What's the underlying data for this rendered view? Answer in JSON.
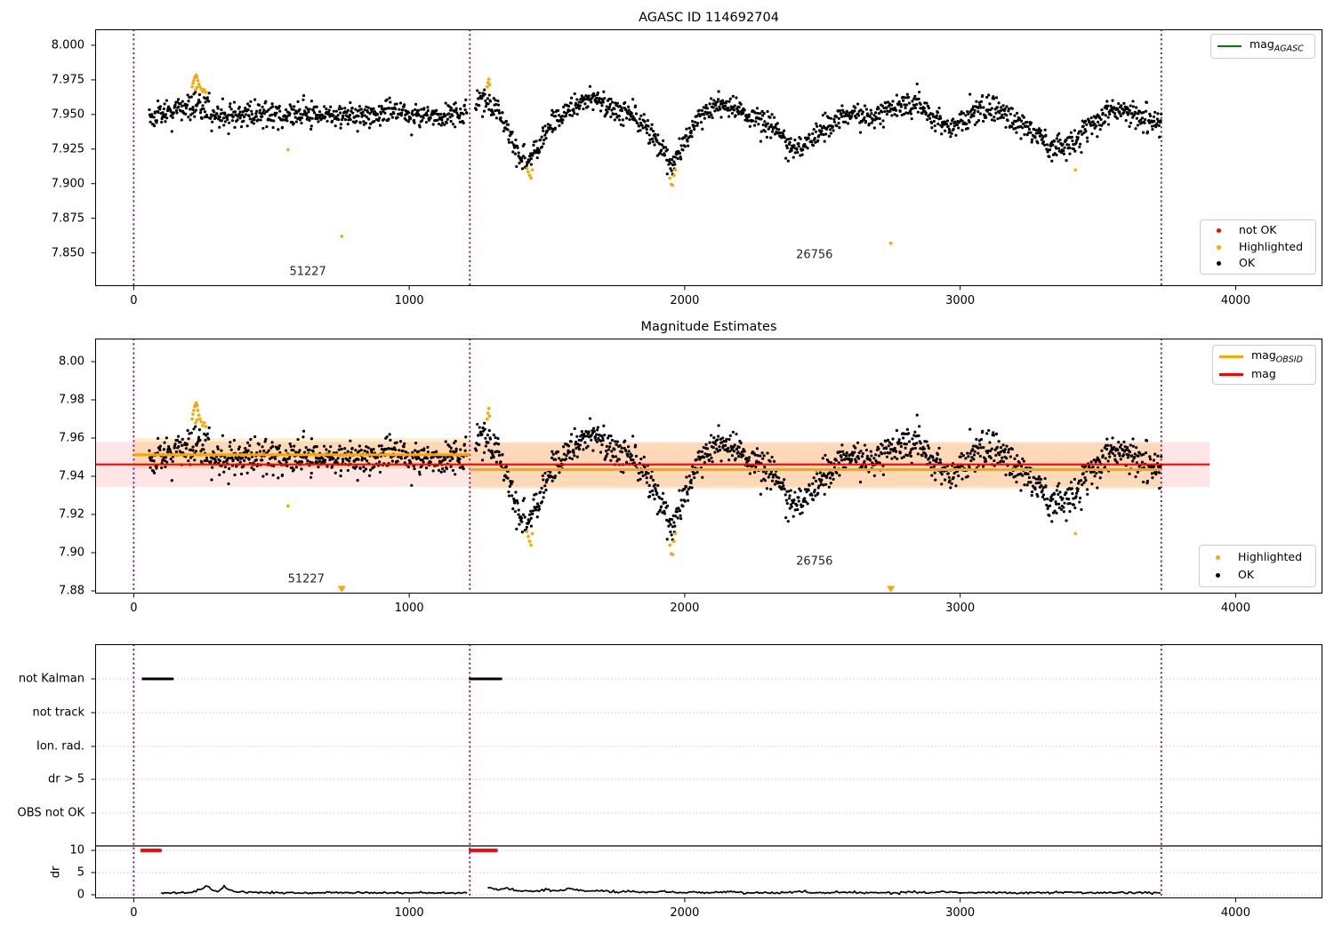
{
  "colors": {
    "green": "#008000",
    "red": "#ff0000",
    "orange": "#ffa500",
    "black": "#000000",
    "purple": "#800080",
    "band_red": "rgba(255,0,0,0.10)",
    "band_orange": "rgba(255,165,0,0.20)",
    "grid": "#c9c9c9"
  },
  "legend": {
    "mag_agasc": {
      "main": "mag",
      "sub": "AGASC"
    },
    "p1_items": [
      {
        "label": "not OK"
      },
      {
        "label": "Highlighted"
      },
      {
        "label": "OK"
      }
    ],
    "mag_obsid": {
      "main": "mag",
      "sub": "OBSID"
    },
    "mag_plain": {
      "label": "mag"
    },
    "p2_items": [
      {
        "label": "Highlighted"
      },
      {
        "label": "OK"
      }
    ]
  },
  "chart_data": [
    {
      "type": "scatter",
      "title": "AGASC ID 114692704",
      "xlim": [
        -140,
        4315
      ],
      "ylim": [
        7.826,
        8.0115
      ],
      "xticks": [
        0,
        1000,
        2000,
        3000,
        4000
      ],
      "ytick_labels": [
        "8.000",
        "7.975",
        "7.950",
        "7.925",
        "7.900",
        "7.875",
        "7.850"
      ],
      "ytick_values": [
        8.0,
        7.975,
        7.95,
        7.925,
        7.9,
        7.875,
        7.85
      ],
      "vlines": [
        0,
        1220,
        3730
      ],
      "annotations": [
        {
          "text": "51227",
          "x": 632,
          "y": 7.8365
        },
        {
          "text": "26756",
          "x": 2471,
          "y": 7.8487
        }
      ],
      "series": {
        "ok": {
          "color": "#000000",
          "sigma": 0.0044,
          "segments": [
            {
              "x0": 55,
              "x1": 1210,
              "n": 620,
              "anchors": [
                [
                  55,
                  7.9485
                ],
                [
                  120,
                  7.951
                ],
                [
                  165,
                  7.9535
                ],
                [
                  200,
                  7.9585
                ],
                [
                  235,
                  7.9565
                ],
                [
                  270,
                  7.9515
                ],
                [
                  330,
                  7.949
                ],
                [
                  420,
                  7.9505
                ],
                [
                  520,
                  7.9495
                ],
                [
                  620,
                  7.9505
                ],
                [
                  720,
                  7.95
                ],
                [
                  820,
                  7.9495
                ],
                [
                  920,
                  7.9505
                ],
                [
                  1020,
                  7.9495
                ],
                [
                  1120,
                  7.95
                ],
                [
                  1210,
                  7.9505
                ]
              ]
            },
            {
              "x0": 1240,
              "x1": 3730,
              "n": 1300,
              "anchors": [
                [
                  1240,
                  7.9575
                ],
                [
                  1270,
                  7.962
                ],
                [
                  1300,
                  7.956
                ],
                [
                  1340,
                  7.946
                ],
                [
                  1390,
                  7.925
                ],
                [
                  1430,
                  7.9135
                ],
                [
                  1470,
                  7.928
                ],
                [
                  1520,
                  7.9435
                ],
                [
                  1570,
                  7.9525
                ],
                [
                  1620,
                  7.9585
                ],
                [
                  1665,
                  7.9615
                ],
                [
                  1700,
                  7.9575
                ],
                [
                  1740,
                  7.9525
                ],
                [
                  1780,
                  7.9495
                ],
                [
                  1820,
                  7.9475
                ],
                [
                  1860,
                  7.9405
                ],
                [
                  1910,
                  7.9265
                ],
                [
                  1955,
                  7.9125
                ],
                [
                  1990,
                  7.9275
                ],
                [
                  2030,
                  7.9425
                ],
                [
                  2080,
                  7.9525
                ],
                [
                  2130,
                  7.9575
                ],
                [
                  2170,
                  7.9555
                ],
                [
                  2220,
                  7.9505
                ],
                [
                  2270,
                  7.9465
                ],
                [
                  2320,
                  7.9415
                ],
                [
                  2370,
                  7.9305
                ],
                [
                  2420,
                  7.9245
                ],
                [
                  2470,
                  7.9335
                ],
                [
                  2520,
                  7.9425
                ],
                [
                  2570,
                  7.9495
                ],
                [
                  2620,
                  7.9505
                ],
                [
                  2670,
                  7.9475
                ],
                [
                  2720,
                  7.9505
                ],
                [
                  2770,
                  7.9555
                ],
                [
                  2820,
                  7.9585
                ],
                [
                  2870,
                  7.9545
                ],
                [
                  2910,
                  7.9465
                ],
                [
                  2950,
                  7.9405
                ],
                [
                  2990,
                  7.9445
                ],
                [
                  3030,
                  7.9495
                ],
                [
                  3080,
                  7.9525
                ],
                [
                  3130,
                  7.9545
                ],
                [
                  3180,
                  7.9485
                ],
                [
                  3230,
                  7.9425
                ],
                [
                  3280,
                  7.9345
                ],
                [
                  3330,
                  7.9275
                ],
                [
                  3380,
                  7.9255
                ],
                [
                  3430,
                  7.9325
                ],
                [
                  3480,
                  7.9435
                ],
                [
                  3530,
                  7.9505
                ],
                [
                  3580,
                  7.9535
                ],
                [
                  3630,
                  7.9505
                ],
                [
                  3680,
                  7.9465
                ],
                [
                  3730,
                  7.9445
                ]
              ]
            }
          ]
        },
        "highlighted": {
          "color": "#ffa500",
          "points": [
            [
              212,
              7.97
            ],
            [
              215,
              7.9725
            ],
            [
              218,
              7.9745
            ],
            [
              221,
              7.9765
            ],
            [
              224,
              7.9775
            ],
            [
              227,
              7.9785
            ],
            [
              230,
              7.977
            ],
            [
              233,
              7.9745
            ],
            [
              236,
              7.972
            ],
            [
              229,
              7.9695
            ],
            [
              225,
              7.968
            ],
            [
              240,
              7.97
            ],
            [
              245,
              7.9685
            ],
            [
              250,
              7.9665
            ],
            [
              256,
              7.968
            ],
            [
              262,
              7.966
            ],
            [
              560,
              7.9245
            ],
            [
              755,
              7.862
            ],
            [
              1283,
              7.97
            ],
            [
              1286,
              7.973
            ],
            [
              1289,
              7.9755
            ],
            [
              1292,
              7.9715
            ],
            [
              1427,
              7.911
            ],
            [
              1432,
              7.9085
            ],
            [
              1437,
              7.906
            ],
            [
              1442,
              7.904
            ],
            [
              1447,
              7.91
            ],
            [
              1946,
              7.904
            ],
            [
              1951,
              7.8995
            ],
            [
              1956,
              7.899
            ],
            [
              1961,
              7.906
            ],
            [
              1966,
              7.91
            ],
            [
              2748,
              7.857
            ],
            [
              3418,
              7.91
            ]
          ]
        }
      }
    },
    {
      "type": "scatter",
      "title": "Magnitude Estimates",
      "xlim": [
        -140,
        4315
      ],
      "ylim": [
        7.8786,
        8.0121
      ],
      "xticks": [
        0,
        1000,
        2000,
        3000,
        4000
      ],
      "ytick_labels": [
        "8.00",
        "7.98",
        "7.96",
        "7.94",
        "7.92",
        "7.90",
        "7.88"
      ],
      "ytick_values": [
        8.0,
        7.98,
        7.96,
        7.94,
        7.92,
        7.9,
        7.88
      ],
      "vlines": [
        0,
        1220,
        3730
      ],
      "series_source": 0,
      "clip_min": 7.8815,
      "mag_line": {
        "color": "#ff0000",
        "y": 7.9462,
        "x0": -140,
        "x1": 3906,
        "width": 2.2
      },
      "mag_band": {
        "x0": -140,
        "x1": 3906,
        "y0": 7.9345,
        "y1": 7.958
      },
      "obsid_line": {
        "color": "#ffa500",
        "width": 3,
        "segments": [
          {
            "x0": 0,
            "x1": 1220,
            "y": 7.9513
          },
          {
            "x0": 1220,
            "x1": 3730,
            "y": 7.9435
          }
        ]
      },
      "obsid_band": {
        "segments": [
          {
            "x0": 0,
            "x1": 1220,
            "y0": 7.944,
            "y1": 7.96
          },
          {
            "x0": 1220,
            "x1": 3730,
            "y0": 7.9335,
            "y1": 7.9575
          }
        ]
      },
      "clipped_markers": {
        "shape": "triangle-down",
        "color": "#ffa500",
        "points": [
          [
            755,
            7.881
          ],
          [
            2748,
            7.881
          ]
        ]
      },
      "annotations": [
        {
          "text": "51227",
          "x": 626,
          "y": 7.8861
        },
        {
          "text": "26756",
          "x": 2471,
          "y": 7.8954
        }
      ]
    },
    {
      "type": "line",
      "title": "",
      "xlim": [
        -140,
        4315
      ],
      "ylim": [
        -0.8,
        56.4
      ],
      "xticks": [
        0,
        1000,
        2000,
        3000,
        4000
      ],
      "categories": [
        {
          "label": "not Kalman",
          "value": 48.6
        },
        {
          "label": "not track",
          "value": 41.0
        },
        {
          "label": "Ion. rad.",
          "value": 33.4
        },
        {
          "label": "dr > 5",
          "value": 26.0
        },
        {
          "label": "OBS not OK",
          "value": 18.4
        }
      ],
      "dr_ticks": [
        {
          "label": "10",
          "value": 10
        },
        {
          "label": "5",
          "value": 5
        },
        {
          "label": "0",
          "value": 0
        }
      ],
      "ylabel": "dr",
      "vlines": [
        0,
        1220,
        3730
      ],
      "hline": {
        "y": 11.0,
        "color": "#000000"
      },
      "dr_line": {
        "color": "#000000",
        "sigma": 0.12,
        "floor": 0.05,
        "step": 6,
        "segments": [
          {
            "anchors": [
              [
                100,
                0.35
              ],
              [
                150,
                0.4
              ],
              [
                200,
                0.5
              ],
              [
                240,
                1.0
              ],
              [
                265,
                2.2
              ],
              [
                285,
                1.2
              ],
              [
                305,
                0.8
              ],
              [
                330,
                2.0
              ],
              [
                350,
                1.0
              ],
              [
                380,
                0.6
              ],
              [
                430,
                0.5
              ],
              [
                500,
                0.45
              ],
              [
                560,
                0.6
              ],
              [
                620,
                0.4
              ],
              [
                700,
                0.45
              ],
              [
                780,
                0.4
              ],
              [
                860,
                0.5
              ],
              [
                940,
                0.4
              ],
              [
                1020,
                0.45
              ],
              [
                1100,
                0.4
              ],
              [
                1210,
                0.35
              ]
            ]
          },
          {
            "anchors": [
              [
                1285,
                1.6
              ],
              [
                1320,
                1.2
              ],
              [
                1350,
                1.5
              ],
              [
                1380,
                1.1
              ],
              [
                1420,
                0.8
              ],
              [
                1460,
                0.9
              ],
              [
                1500,
                1.2
              ],
              [
                1540,
                0.9
              ],
              [
                1580,
                1.4
              ],
              [
                1620,
                1.0
              ],
              [
                1660,
                0.7
              ],
              [
                1700,
                0.9
              ],
              [
                1740,
                0.6
              ],
              [
                1800,
                0.8
              ],
              [
                1860,
                0.5
              ],
              [
                1920,
                0.7
              ],
              [
                1980,
                0.5
              ],
              [
                2040,
                0.6
              ],
              [
                2100,
                0.5
              ],
              [
                2160,
                0.7
              ],
              [
                2220,
                0.45
              ],
              [
                2280,
                0.55
              ],
              [
                2340,
                0.4
              ],
              [
                2400,
                0.65
              ],
              [
                2460,
                0.5
              ],
              [
                2520,
                0.45
              ],
              [
                2580,
                0.55
              ],
              [
                2640,
                0.4
              ],
              [
                2700,
                0.55
              ],
              [
                2760,
                0.45
              ],
              [
                2820,
                0.6
              ],
              [
                2880,
                0.5
              ],
              [
                2940,
                0.65
              ],
              [
                3000,
                0.45
              ],
              [
                3060,
                0.5
              ],
              [
                3120,
                0.55
              ],
              [
                3180,
                0.4
              ],
              [
                3240,
                0.5
              ],
              [
                3300,
                0.45
              ],
              [
                3360,
                0.55
              ],
              [
                3420,
                0.5
              ],
              [
                3480,
                0.45
              ],
              [
                3540,
                0.55
              ],
              [
                3600,
                0.45
              ],
              [
                3660,
                0.5
              ],
              [
                3730,
                0.45
              ]
            ]
          }
        ]
      },
      "dr_clipped": {
        "color": "#ff0000",
        "value": 10,
        "runs": [
          [
            30,
            100
          ],
          [
            1222,
            1320
          ]
        ]
      },
      "not_kalman_marks": {
        "color": "#000000",
        "value": 48.6,
        "runs": [
          [
            35,
            140
          ],
          [
            1222,
            1335
          ]
        ]
      }
    }
  ]
}
